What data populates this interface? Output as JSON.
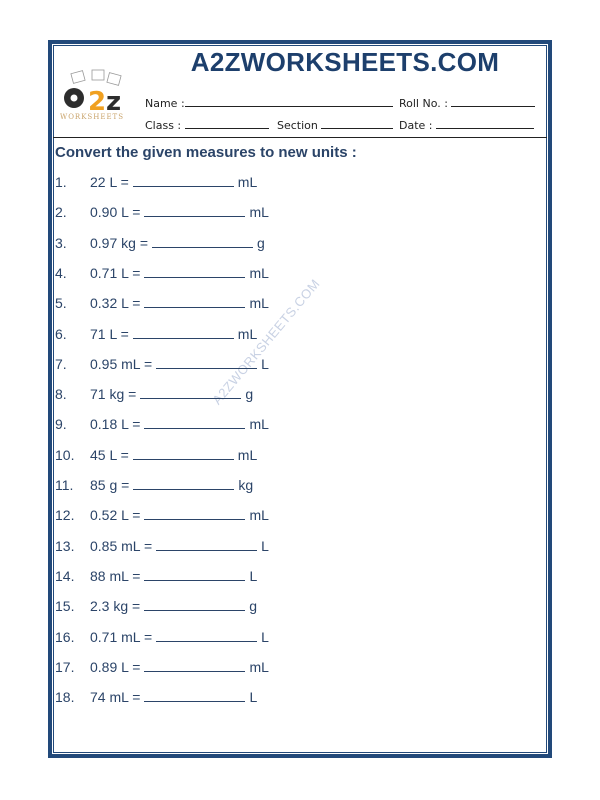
{
  "header": {
    "title": "A2ZWORKSHEETS.COM",
    "logo_text": "a2z",
    "logo_subtext": "WORKSHEETS",
    "name_label": "Name :",
    "roll_label": "Roll No. :",
    "class_label": "Class :",
    "section_label": "Section",
    "date_label": "Date :"
  },
  "instruction": "Convert the given measures to new units :",
  "watermark": "A2ZWORKSHEETS.COM",
  "questions": [
    {
      "num": "1.",
      "lhs": "22 L =",
      "unit": "mL"
    },
    {
      "num": "2.",
      "lhs": "0.90 L =",
      "unit": "mL"
    },
    {
      "num": "3.",
      "lhs": "0.97 kg =",
      "unit": "g"
    },
    {
      "num": "4.",
      "lhs": "0.71 L =",
      "unit": "mL"
    },
    {
      "num": "5.",
      "lhs": "0.32 L =",
      "unit": "mL"
    },
    {
      "num": "6.",
      "lhs": "71 L =",
      "unit": "mL"
    },
    {
      "num": "7.",
      "lhs": "0.95 mL =",
      "unit": "L"
    },
    {
      "num": "8.",
      "lhs": "71 kg =",
      "unit": "g"
    },
    {
      "num": "9.",
      "lhs": "0.18 L =",
      "unit": "mL"
    },
    {
      "num": "10.",
      "lhs": "45 L =",
      "unit": "mL"
    },
    {
      "num": "11.",
      "lhs": "85 g =",
      "unit": "kg"
    },
    {
      "num": "12.",
      "lhs": "0.52 L =",
      "unit": "mL"
    },
    {
      "num": "13.",
      "lhs": "0.85 mL =",
      "unit": "L"
    },
    {
      "num": "14.",
      "lhs": "88 mL =",
      "unit": "L"
    },
    {
      "num": "15.",
      "lhs": "2.3 kg =",
      "unit": "g"
    },
    {
      "num": "16.",
      "lhs": "0.71 mL =",
      "unit": "L"
    },
    {
      "num": "17.",
      "lhs": "0.89 L =",
      "unit": "mL"
    },
    {
      "num": "18.",
      "lhs": "74 mL =",
      "unit": "L"
    }
  ]
}
